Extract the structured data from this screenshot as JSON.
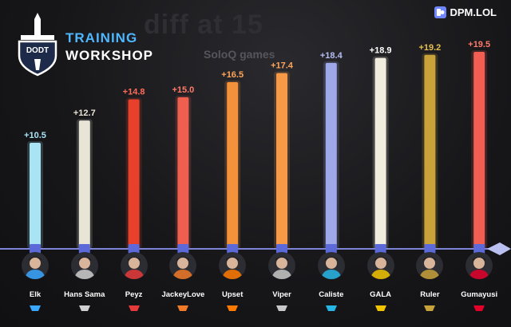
{
  "background_title": "diff at 15",
  "background_subtitle": "SoloQ games",
  "logo": {
    "line1": "TRAINING",
    "line2": "WORKSHOP",
    "shield_text": "DODT"
  },
  "brand": {
    "name": "DPM.LOL",
    "icon": "dpm-logo-icon"
  },
  "colors": {
    "background": "#141416",
    "baseline": "#7b84d6",
    "logo_blue": "#4fb7ff"
  },
  "chart_data": {
    "type": "bar",
    "title": "",
    "xlabel": "",
    "ylabel": "",
    "ylim": [
      0,
      20
    ],
    "grid": false,
    "categories": [
      "Elk",
      "Hans Sama",
      "Peyz",
      "JackeyLove",
      "Upset",
      "Viper",
      "Caliste",
      "GALA",
      "Ruler",
      "Gumayusi"
    ],
    "values": [
      10.5,
      12.7,
      14.8,
      15.0,
      16.5,
      17.4,
      18.4,
      18.9,
      19.2,
      19.5
    ],
    "value_labels": [
      "+10.5",
      "+12.7",
      "+14.8",
      "+15.0",
      "+16.5",
      "+17.4",
      "+18.4",
      "+18.9",
      "+19.2",
      "+19.5"
    ],
    "bar_colors": [
      "#a9e4f5",
      "#e8e4d6",
      "#e8402a",
      "#ef5f4f",
      "#f4923c",
      "#f79a48",
      "#9fa8e8",
      "#f0ecde",
      "#c9a23a",
      "#f25e52"
    ],
    "label_colors": [
      "#a9e4f5",
      "#e8e4d6",
      "#ff6b5b",
      "#ff7a6a",
      "#ffa55a",
      "#ffa55a",
      "#b5bdf5",
      "#ffffff",
      "#e6c04e",
      "#ff7a6a"
    ],
    "teams": [
      "BLG",
      "G2",
      "JDG",
      "Hanwha",
      "Fnatic",
      "Liquid",
      "KC",
      "Vitality",
      "Gen.G",
      "T1"
    ],
    "team_colors": [
      "#3aa7ff",
      "#cfcfcf",
      "#e63a3a",
      "#f07a28",
      "#ff7a00",
      "#c8c8c8",
      "#27b5e6",
      "#f2c400",
      "#c7a23a",
      "#e4002b"
    ],
    "team_icons": [
      "blg-logo-icon",
      "g2-logo-icon",
      "jdg-logo-icon",
      "hanwha-logo-icon",
      "fnatic-logo-icon",
      "liquid-logo-icon",
      "kc-logo-icon",
      "vitality-logo-icon",
      "geng-logo-icon",
      "t1-logo-icon"
    ]
  }
}
